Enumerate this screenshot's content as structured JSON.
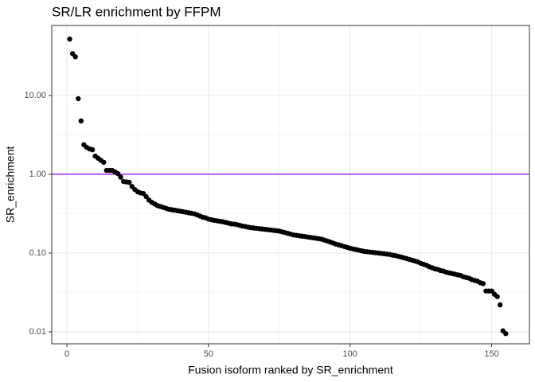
{
  "chart_data": {
    "type": "scatter",
    "title": "SR/LR enrichment by FFPM",
    "x_label": "Fusion isoform ranked by SR_enrichment",
    "y_label": "SR_enrichment",
    "xlim": [
      -5.35,
      163.35
    ],
    "xticks": [
      0,
      50,
      100,
      150
    ],
    "ylim": [
      0.00705,
      77.4
    ],
    "y_log": true,
    "yticks": [
      {
        "value": 0.01,
        "label": "0.01"
      },
      {
        "value": 0.1,
        "label": "0.10"
      },
      {
        "value": 1,
        "label": "1.00"
      },
      {
        "value": 10,
        "label": "10.00"
      }
    ],
    "grid": true,
    "hline": {
      "value": 1,
      "color": "#a020f0"
    },
    "color": "#000000",
    "x": [
      1,
      2,
      3,
      4,
      5,
      6,
      7,
      8,
      9,
      10,
      11,
      12,
      13,
      14,
      15,
      16,
      17,
      18,
      19,
      20,
      21,
      22,
      23,
      24,
      25,
      26,
      27,
      28,
      29,
      30,
      31,
      32,
      33,
      34,
      35,
      36,
      37,
      38,
      39,
      40,
      41,
      42,
      43,
      44,
      45,
      46,
      47,
      48,
      49,
      50,
      51,
      52,
      53,
      54,
      55,
      56,
      57,
      58,
      59,
      60,
      61,
      62,
      63,
      64,
      65,
      66,
      67,
      68,
      69,
      70,
      71,
      72,
      73,
      74,
      75,
      76,
      77,
      78,
      79,
      80,
      81,
      82,
      83,
      84,
      85,
      86,
      87,
      88,
      89,
      90,
      91,
      92,
      93,
      94,
      95,
      96,
      97,
      98,
      99,
      100,
      101,
      102,
      103,
      104,
      105,
      106,
      107,
      108,
      109,
      110,
      111,
      112,
      113,
      114,
      115,
      116,
      117,
      118,
      119,
      120,
      121,
      122,
      123,
      124,
      125,
      126,
      127,
      128,
      129,
      130,
      131,
      132,
      133,
      134,
      135,
      136,
      137,
      138,
      139,
      140,
      141,
      142,
      143,
      144,
      145,
      146,
      147,
      148,
      149,
      150,
      151,
      152,
      153,
      154,
      155
    ],
    "values": [
      52,
      34,
      31,
      9.1,
      4.75,
      2.37,
      2.2,
      2.1,
      2.05,
      1.7,
      1.6,
      1.5,
      1.42,
      1.12,
      1.12,
      1.12,
      1.07,
      1.02,
      0.92,
      0.81,
      0.8,
      0.79,
      0.7,
      0.64,
      0.6,
      0.58,
      0.57,
      0.52,
      0.47,
      0.44,
      0.42,
      0.4,
      0.39,
      0.38,
      0.37,
      0.36,
      0.355,
      0.35,
      0.345,
      0.34,
      0.335,
      0.33,
      0.325,
      0.32,
      0.315,
      0.305,
      0.295,
      0.285,
      0.28,
      0.27,
      0.265,
      0.26,
      0.257,
      0.253,
      0.25,
      0.245,
      0.24,
      0.235,
      0.233,
      0.23,
      0.225,
      0.22,
      0.217,
      0.213,
      0.21,
      0.208,
      0.206,
      0.204,
      0.202,
      0.2,
      0.198,
      0.196,
      0.194,
      0.192,
      0.19,
      0.186,
      0.182,
      0.178,
      0.174,
      0.17,
      0.168,
      0.166,
      0.164,
      0.162,
      0.16,
      0.158,
      0.156,
      0.154,
      0.152,
      0.15,
      0.146,
      0.142,
      0.138,
      0.134,
      0.13,
      0.127,
      0.124,
      0.121,
      0.118,
      0.115,
      0.113,
      0.111,
      0.109,
      0.107,
      0.105,
      0.104,
      0.103,
      0.102,
      0.101,
      0.1,
      0.099,
      0.098,
      0.097,
      0.096,
      0.094,
      0.093,
      0.091,
      0.089,
      0.087,
      0.085,
      0.083,
      0.081,
      0.079,
      0.077,
      0.074,
      0.072,
      0.07,
      0.067,
      0.065,
      0.063,
      0.062,
      0.06,
      0.059,
      0.057,
      0.056,
      0.055,
      0.054,
      0.053,
      0.052,
      0.05,
      0.049,
      0.048,
      0.046,
      0.045,
      0.044,
      0.042,
      0.041,
      0.033,
      0.033,
      0.033,
      0.03,
      0.028,
      0.022,
      0.0103,
      0.0095
    ]
  }
}
